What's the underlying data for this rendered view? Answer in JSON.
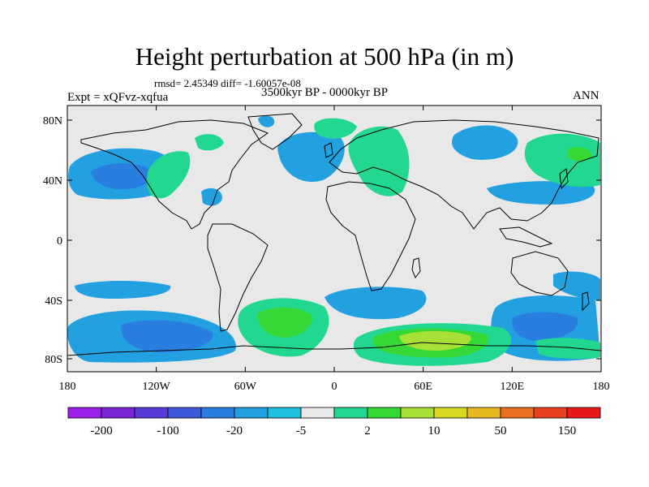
{
  "title": "Height perturbation at 500 hPa (in m)",
  "stats": "rmsd= 2.45349 diff= -1.60057e-08",
  "experiment": "Expt = xQFvz-xqfua",
  "period": "3500kyr BP - 0000kyr BP",
  "season": "ANN",
  "map": {
    "projection": "cylindrical equidistant",
    "lon_range": [
      -180,
      180
    ],
    "lat_range": [
      -90,
      90
    ],
    "lat_ticks": [
      "80N",
      "40N",
      "0",
      "40S",
      "80S"
    ],
    "lon_ticks": [
      "180",
      "120W",
      "60W",
      "0",
      "60E",
      "120E",
      "180"
    ],
    "background_color": "#e8e8e8"
  },
  "colorbar": {
    "colors": [
      "#9b21e8",
      "#7a25d8",
      "#5a3ad8",
      "#3d58d8",
      "#2a7ee0",
      "#22a0e0",
      "#1fbfe0",
      "#e8e8e8",
      "#22d890",
      "#35d835",
      "#a8e035",
      "#d8d820",
      "#e8b820",
      "#e87020",
      "#e84020",
      "#e81818"
    ],
    "tick_labels": [
      "-200",
      "-100",
      "-20",
      "-5",
      "2",
      "10",
      "50",
      "150"
    ]
  }
}
